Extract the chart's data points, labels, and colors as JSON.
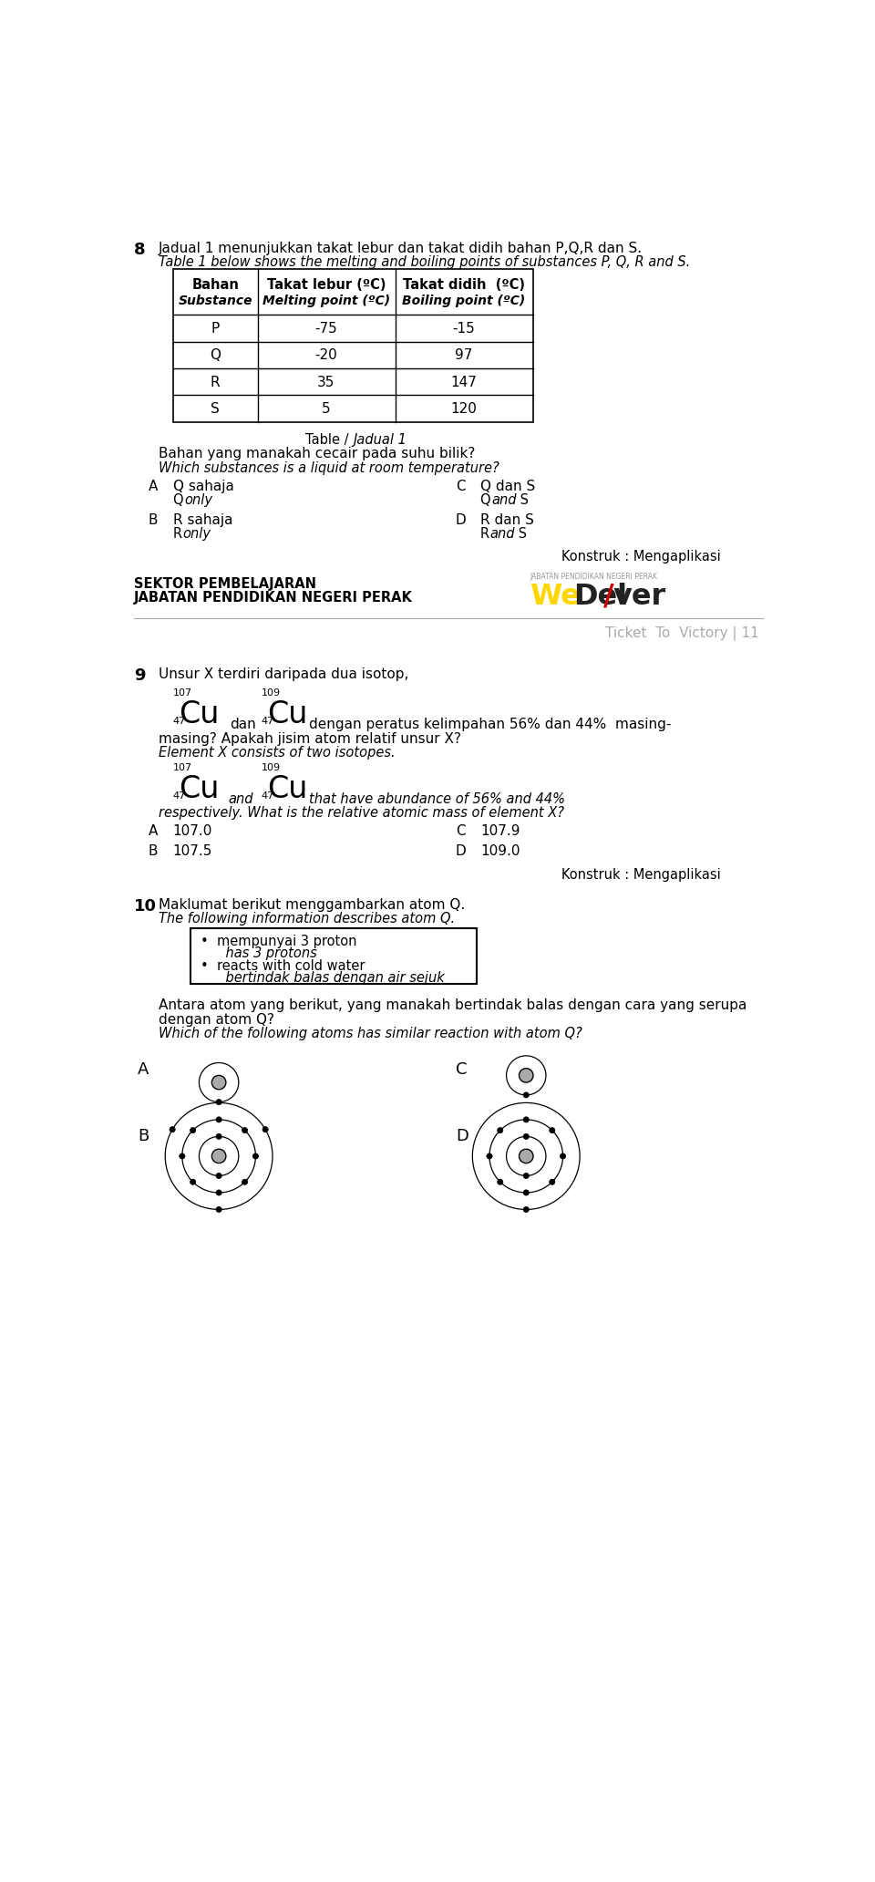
{
  "bg_color": "#ffffff",
  "page_width": 9.6,
  "page_height": 20.64,
  "q8_number": "8",
  "q8_text_ms": "Jadual 1 menunjukkan takat lebur dan takat didih bahan P,Q,R dan S.",
  "q8_text_en": "Table 1 below shows the melting and boiling points of substances P, Q, R and S.",
  "table_col_headers_bold": [
    "Bahan",
    "Takat lebur (ºC)",
    "Takat didih  (ºC)"
  ],
  "table_col_headers_italic": [
    "Substance",
    "Melting point (ºC)",
    "Boiling point (ºC)"
  ],
  "table_data": [
    [
      "P",
      "-75",
      "-15"
    ],
    [
      "Q",
      "-20",
      "97"
    ],
    [
      "R",
      "35",
      "147"
    ],
    [
      "S",
      "5",
      "120"
    ]
  ],
  "q8_question_ms": "Bahan yang manakah cecair pada suhu bilik?",
  "q8_question_en": "Which substances is a liquid at room temperature?",
  "konstruk1": "Konstruk : Mengaplikasi",
  "footer_left1": "SEKTOR PEMBELAJARAN",
  "footer_left2": "JABATAN PENDIDIKAN NEGERI PERAK",
  "footer_right_small": "JABATAN PENDIDIKAN NEGERI PERAK",
  "divider_text": "Ticket  To  Victory | 11",
  "q9_number": "9",
  "q9_text_ms": "Unsur X terdiri daripada dua isotop,",
  "q9_text_ms2": "dengan peratus kelimpahan 56% dan 44%  masing-",
  "q9_text_ms3": "masing? Apakah jisim atom relatif unsur X?",
  "q9_text_en1": "Element X consists of two isotopes.",
  "q9_text_en2": "that have abundance of 56% and 44%",
  "q9_text_en3": "respectively. What is the relative atomic mass of element X?",
  "konstruk2": "Konstruk : Mengaplikasi",
  "q10_number": "10",
  "q10_text_ms": "Maklumat berikut menggambarkan atom Q.",
  "q10_text_en": "The following information describes atom Q.",
  "q10_box_line1": "•  mempunyai 3 proton",
  "q10_box_line1i": "    has 3 protons",
  "q10_box_line2": "•  reacts with cold water",
  "q10_box_line2i": "    bertindak balas dengan air sejuk",
  "q10_question_ms1": "Antara atom yang berikut, yang manakah bertindak balas dengan cara yang serupa",
  "q10_question_ms2": "dengan atom Q?",
  "q10_question_en": "Which of the following atoms has similar reaction with atom Q?"
}
